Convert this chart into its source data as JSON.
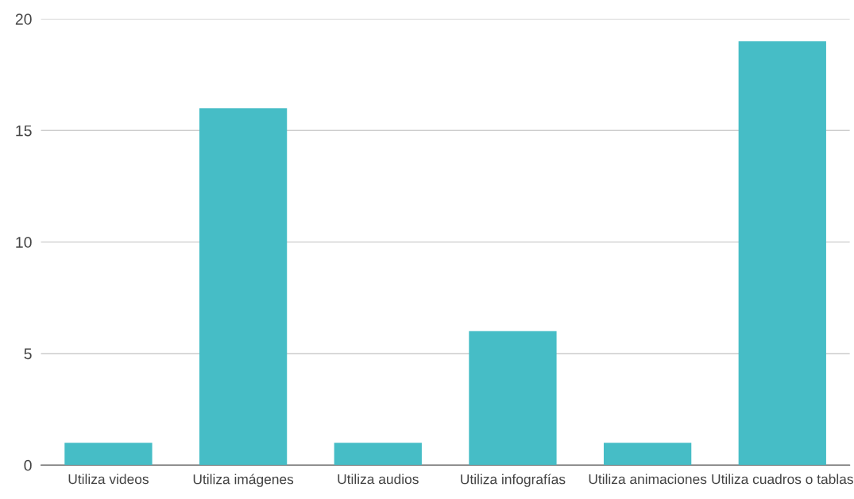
{
  "chart_data": {
    "type": "bar",
    "categories": [
      "Utiliza videos",
      "Utiliza imágenes",
      "Utiliza audios",
      "Utiliza infografías",
      "Utiliza animaciones",
      "Utiliza cuadros o tablas"
    ],
    "values": [
      1,
      16,
      1,
      6,
      1,
      19
    ],
    "color": "#46bdc6",
    "ylim": [
      0,
      20
    ],
    "yticks": [
      0,
      5,
      10,
      15,
      20
    ],
    "grid": "y"
  }
}
